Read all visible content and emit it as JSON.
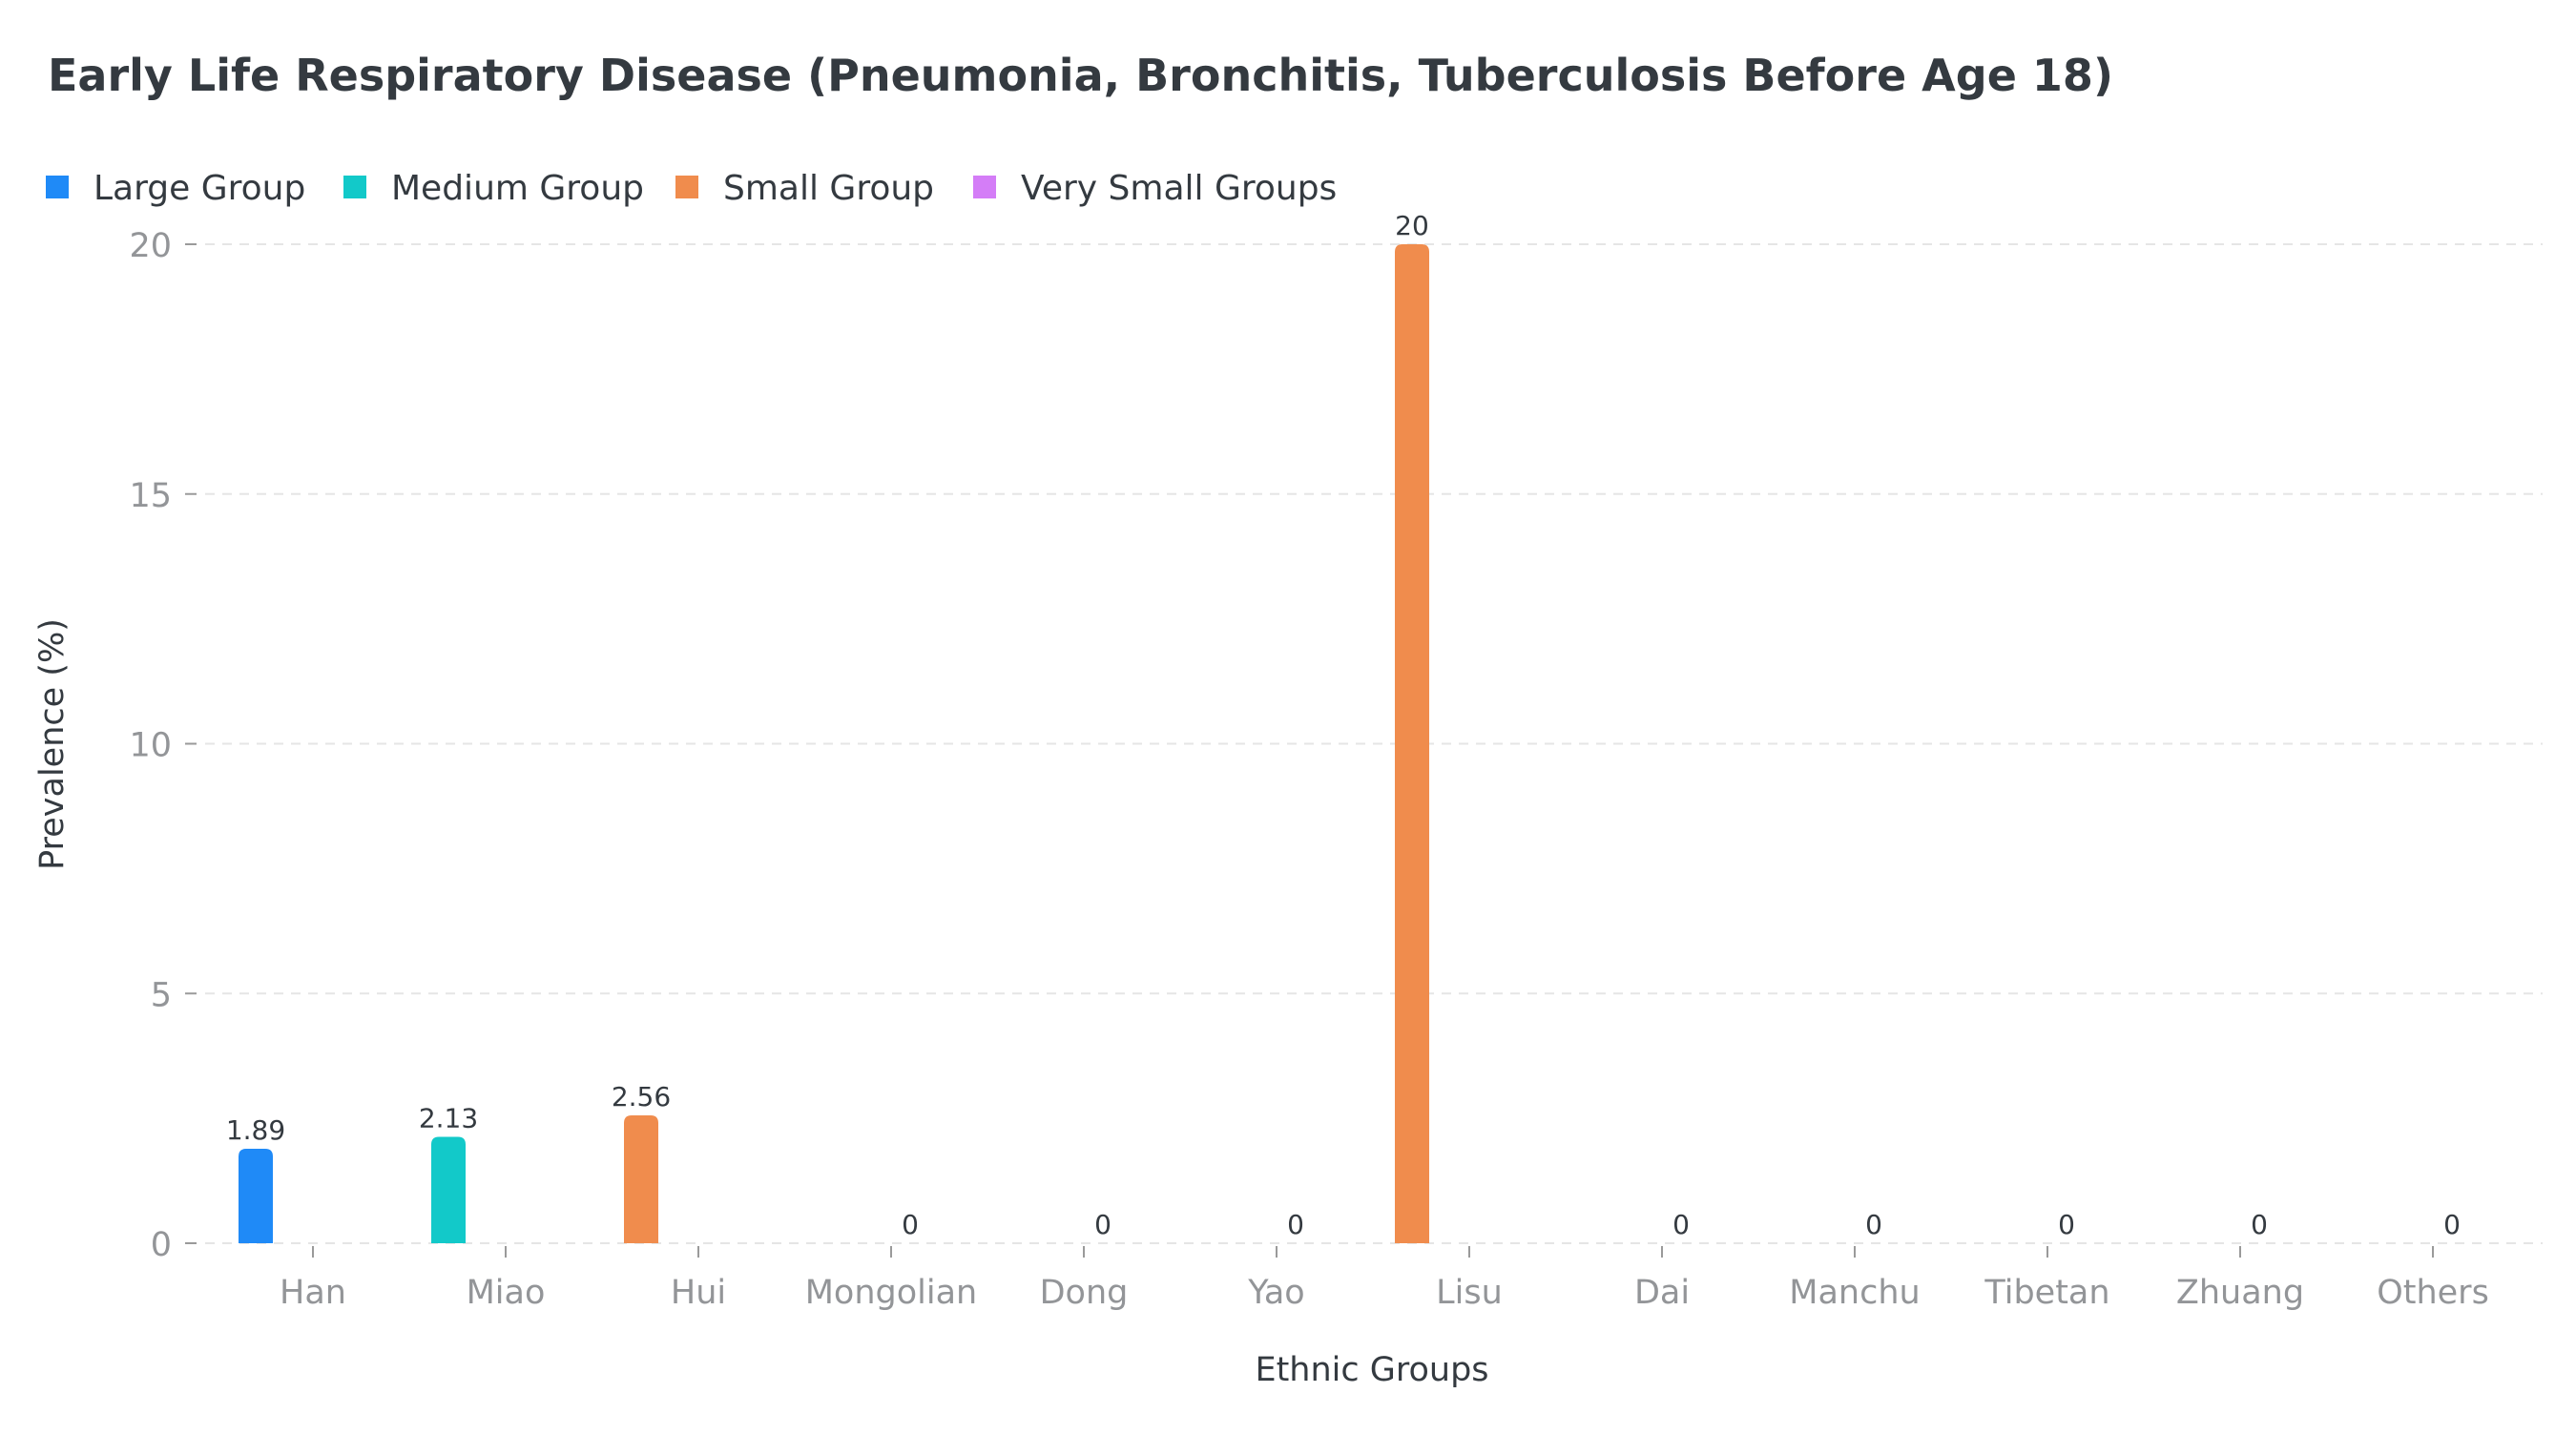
{
  "chart_data": {
    "type": "bar",
    "title": "Early Life Respiratory Disease (Pneumonia, Bronchitis, Tuberculosis Before Age 18)",
    "xlabel": "Ethnic Groups",
    "ylabel": "Prevalence (%)",
    "ylim": [
      0,
      20
    ],
    "yticks": [
      0,
      5,
      10,
      15,
      20
    ],
    "grid": "horizontal dashed",
    "legend_position": "top-left",
    "categories": [
      "Han",
      "Miao",
      "Hui",
      "Mongolian",
      "Dong",
      "Yao",
      "Lisu",
      "Dai",
      "Manchu",
      "Tibetan",
      "Zhuang",
      "Others"
    ],
    "series": [
      {
        "name": "Large Group",
        "color": "#1f8af7",
        "values": [
          1.89,
          null,
          null,
          null,
          null,
          null,
          null,
          null,
          null,
          null,
          null,
          null
        ]
      },
      {
        "name": "Medium Group",
        "color": "#12c9c9",
        "values": [
          null,
          2.13,
          null,
          null,
          null,
          null,
          null,
          null,
          null,
          null,
          null,
          null
        ]
      },
      {
        "name": "Small Group",
        "color": "#f08c4d",
        "values": [
          null,
          null,
          2.56,
          null,
          null,
          null,
          20,
          null,
          null,
          null,
          null,
          null
        ]
      },
      {
        "name": "Very Small Groups",
        "color": "#d47df7",
        "values": [
          null,
          null,
          null,
          0,
          0,
          0,
          null,
          0,
          0,
          0,
          0,
          0
        ]
      }
    ],
    "data_labels": [
      "1.89",
      "2.13",
      "2.56",
      "0",
      "0",
      "0",
      "20",
      "0",
      "0",
      "0",
      "0",
      "0"
    ]
  },
  "colors": {
    "title": "#343a40",
    "axis_text": "#939598",
    "label_text": "#343a40",
    "grid": "#e5e5e5",
    "tick": "#9a9a9a"
  }
}
